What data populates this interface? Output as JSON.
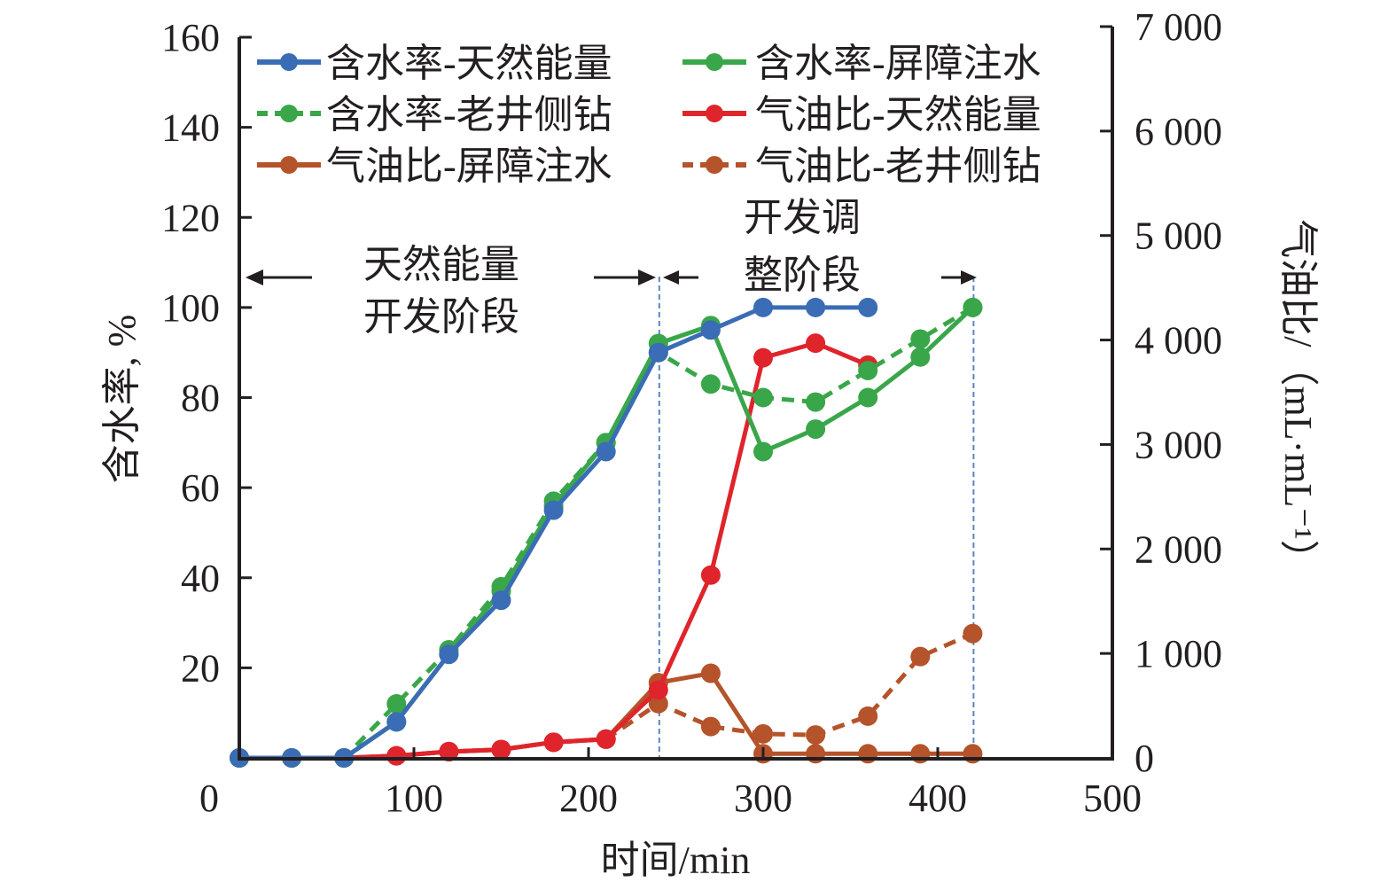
{
  "chart_data": {
    "type": "line",
    "title": "",
    "xlabel": "时间/min",
    "ylabel_left": "含水率, %",
    "ylabel_right": "气油比/（mL·mL⁻¹）",
    "xlim": [
      0,
      500
    ],
    "ylim_left": [
      0,
      160
    ],
    "ylim_right": [
      0,
      7000
    ],
    "x_ticks": [
      0,
      100,
      200,
      300,
      400,
      500
    ],
    "x_tick_labels": [
      "0",
      "100",
      "200",
      "300",
      "400",
      "500"
    ],
    "y_left_ticks": [
      20,
      40,
      60,
      80,
      100,
      120,
      140,
      160
    ],
    "y_left_tick_labels": [
      "20",
      "40",
      "60",
      "80",
      "100",
      "120",
      "140",
      "160"
    ],
    "y_right_ticks": [
      0,
      1000,
      2000,
      3000,
      4000,
      5000,
      6000,
      7000
    ],
    "y_right_tick_labels": [
      "0",
      "1 000",
      "2 000",
      "3 000",
      "4 000",
      "5 000",
      "6 000",
      "7 000"
    ],
    "grid": false,
    "legend_position": "top",
    "series": [
      {
        "name": "含水率-天然能量",
        "axis": "left",
        "color": "#3a6db5",
        "dashed": false,
        "x": [
          0,
          30,
          60,
          90,
          120,
          150,
          180,
          210,
          240,
          270,
          300,
          330,
          360
        ],
        "y": [
          0,
          0,
          0,
          8,
          23,
          35,
          55,
          68,
          90,
          95,
          100,
          100,
          100
        ]
      },
      {
        "name": "含水率-屏障注水",
        "axis": "left",
        "color": "#3aa64a",
        "dashed": false,
        "x": [
          0,
          30,
          60,
          90,
          120,
          150,
          180,
          210,
          240,
          270,
          300,
          330,
          360,
          390,
          420
        ],
        "y": [
          0,
          0,
          0,
          8,
          23,
          37,
          56,
          70,
          92,
          96,
          68,
          73,
          80,
          89,
          100
        ]
      },
      {
        "name": "含水率-老井侧钻",
        "axis": "left",
        "color": "#3aa64a",
        "dashed": true,
        "x": [
          0,
          30,
          60,
          90,
          120,
          150,
          180,
          210,
          240,
          270,
          300,
          330,
          360,
          390,
          420
        ],
        "y": [
          0,
          0,
          0,
          12,
          24,
          38,
          57,
          70,
          90,
          83,
          80,
          79,
          86,
          93,
          100
        ]
      },
      {
        "name": "气油比-天然能量",
        "axis": "right",
        "color": "#e0242c",
        "dashed": false,
        "x": [
          0,
          30,
          60,
          90,
          120,
          150,
          180,
          210,
          240,
          270,
          300,
          330,
          360
        ],
        "y": [
          0,
          0,
          0,
          20,
          60,
          80,
          150,
          180,
          650,
          1750,
          3830,
          3970,
          3760
        ]
      },
      {
        "name": "气油比-屏障注水",
        "axis": "right",
        "color": "#b5532a",
        "dashed": false,
        "x": [
          0,
          30,
          60,
          90,
          120,
          150,
          180,
          210,
          240,
          270,
          300,
          330,
          360,
          390,
          420
        ],
        "y": [
          0,
          0,
          0,
          20,
          60,
          80,
          150,
          180,
          720,
          810,
          40,
          40,
          40,
          40,
          40
        ]
      },
      {
        "name": "气油比-老井侧钻",
        "axis": "right",
        "color": "#b5532a",
        "dashed": true,
        "x": [
          0,
          30,
          60,
          90,
          120,
          150,
          180,
          210,
          240,
          270,
          300,
          330,
          360,
          390,
          420
        ],
        "y": [
          0,
          0,
          0,
          20,
          60,
          80,
          150,
          180,
          520,
          300,
          230,
          220,
          400,
          970,
          1190
        ]
      }
    ],
    "vertical_lines": [
      240,
      420
    ],
    "annotations": [
      {
        "text_line1": "天然能量",
        "text_line2": "开发阶段",
        "x_range": [
          0,
          240
        ]
      },
      {
        "text_line1": "开发调",
        "text_line2": "整阶段",
        "x_range": [
          240,
          420
        ]
      }
    ]
  }
}
